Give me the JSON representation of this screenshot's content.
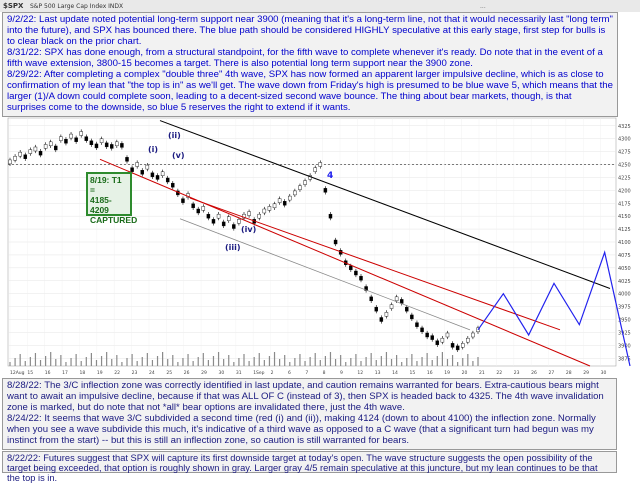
{
  "header": {
    "ticker": "$SPX",
    "description": "S&P 500 Large Cap Index  INDX",
    "info": "..."
  },
  "notes": {
    "n1_date": "9/2/22:",
    "n1_text": "Last update noted potential long-term support near 3900 (meaning that it's a long-term line, not that it would necessarily last \"long term\" into the future), and SPX has bounced there. The blue path should be considered HIGHLY speculative at this early stage, first step for bulls is to clear black on the prior chart.",
    "n2_date": "8/31/22:",
    "n2_text": "SPX has done enough, from a structural standpoint, for the fifth wave to complete whenever it's ready. Do note that in the event of a fifth wave extension, 3800-15 becomes a target. There is also potential long term support near the 3900 zone.",
    "n3_date": "8/29/22:",
    "n3_text": "After completing a complex \"double three\" 4th wave, SPX has now formed an apparent larger impulsive decline, which is as close to confirmation of my lean that \"the top is in\" as we'll get. The wave down from Friday's high is presumed to be blue wave 5, which means that the larger (1)/A down could complete soon, leading to a decent-sized second wave bounce. The thing about bear markets, though, is that surprises come to the downside, so blue 5 reserves the right to extend if it wants.",
    "n4_date": "8/28/22:",
    "n4_text": "The 3/C inflection zone was correctly identified in last update, and caution remains warranted for bears. Extra-cautious bears might want to await an impulsive decline, because if that was ALL OF C (instead of 3), then SPX is headed back to 4325. The 4th wave invalidation zone is marked, but do note that not *all* bear options are invalidated there, just the 4th wave.",
    "n5_date": "8/24/22:",
    "n5_text": "It seems that wave 3/C subdivided a second time (red (i) and (ii)), making 4124 (down to about 4100) the inflection zone. Normally when you see a wave subdivide this much, it's indicative of a third wave as opposed to a C wave (that a significant turn had begun was my instinct from the start) -- but this is still an inflection zone, so caution is still warranted for bears.",
    "n6_date": "8/22/22:",
    "n6_text": "Futures suggest that SPX will capture its first downside target at today's open. The wave structure suggests the open possibility of the target being exceeded, that option is roughly shown in gray. Larger gray 4/5 remain speculative at this juncture, but my lean continues to be that the top is in."
  },
  "callout": {
    "line1": "8/19: T1 =",
    "line2": "4185-4209",
    "line3": "CAPTURED"
  },
  "colors": {
    "note_text": "#0000cc",
    "dark_note": "#1a1a80",
    "candle": "#000000",
    "red_line": "#cc0000",
    "blue_wave": "#2222ee",
    "black_line": "#000000",
    "green_callout": "#2e8b2e"
  },
  "chart_data": {
    "type": "line",
    "title": "$SPX S&P 500 Large Cap Index INDX",
    "y_axis": {
      "ticks": [
        "4325",
        "4300",
        "4275",
        "4250",
        "4225",
        "4200",
        "4175",
        "4150",
        "4125",
        "4100",
        "4075",
        "4050",
        "4025",
        "4000",
        "3975",
        "3950",
        "3925",
        "3900",
        "3875"
      ],
      "range": [
        3860,
        4340
      ]
    },
    "x_axis": {
      "ticks": [
        "12Aug",
        "15",
        "16",
        "17",
        "18",
        "19",
        "22",
        "23",
        "24",
        "25",
        "26",
        "29",
        "30",
        "31",
        "1Sep",
        "2",
        "6",
        "7",
        "8",
        "9",
        "12",
        "13",
        "14",
        "15",
        "16",
        "19",
        "20",
        "21",
        "22",
        "23",
        "26",
        "27",
        "28",
        "29",
        "30"
      ]
    },
    "price_series": [
      4255,
      4262,
      4270,
      4265,
      4275,
      4280,
      4272,
      4285,
      4290,
      4282,
      4300,
      4295,
      4305,
      4298,
      4310,
      4300,
      4292,
      4286,
      4296,
      4288,
      4285,
      4290,
      4287,
      4260,
      4240,
      4250,
      4235,
      4245,
      4230,
      4225,
      4232,
      4220,
      4210,
      4195,
      4180,
      4190,
      4170,
      4160,
      4165,
      4150,
      4140,
      4150,
      4135,
      4145,
      4130,
      4140,
      4150,
      4155,
      4140,
      4150,
      4160,
      4165,
      4170,
      4180,
      4175,
      4185,
      4195,
      4205,
      4215,
      4225,
      4240,
      4250,
      4200,
      4150,
      4100,
      4080,
      4060,
      4050,
      4040,
      4030,
      4010,
      3990,
      3970,
      3950,
      3960,
      3975,
      3990,
      3985,
      3970,
      3955,
      3940,
      3930,
      3920,
      3915,
      3905,
      3910,
      3920,
      3900,
      3895,
      3900,
      3910,
      3920,
      3930
    ],
    "wave_labels": [
      {
        "label": "(ii)",
        "color": "#1a1a80"
      },
      {
        "label": "(i)",
        "color": "#1a1a80"
      },
      {
        "label": "4",
        "color": "#2222ee"
      },
      {
        "label": "(iv)",
        "color": "#1a1a80"
      },
      {
        "label": "(iii)",
        "color": "#1a1a80"
      },
      {
        "label": "(v)",
        "color": "#1a1a80"
      }
    ],
    "projection_blue": [
      3930,
      4000,
      3920,
      4020,
      3940,
      4080,
      3860
    ]
  }
}
